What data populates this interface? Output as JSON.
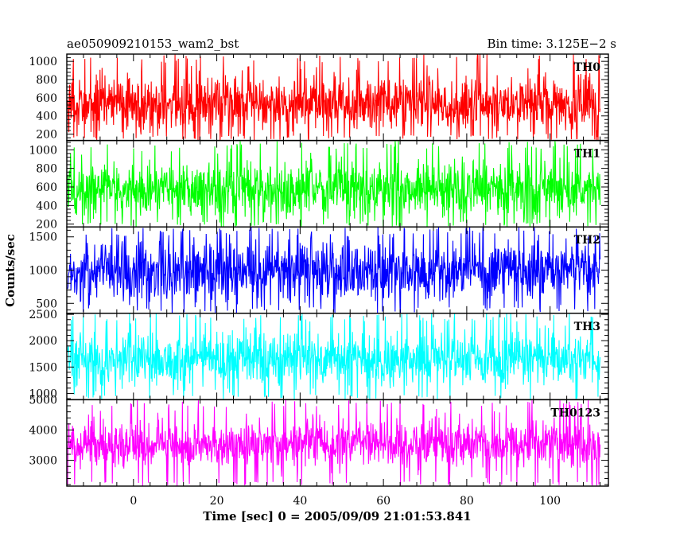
{
  "chart_data": {
    "type": "line",
    "title": "ae050909210153_wam2_bst",
    "subtitle": "Bin time: 3.125E−2 s",
    "xlabel": "Time [sec] 0 = 2005/09/09 21:01:53.841",
    "ylabel": "Counts/sec",
    "xlim": [
      -16,
      114
    ],
    "x_ticks": [
      0,
      20,
      40,
      60,
      80,
      100
    ],
    "x_data_range": [
      -15.8,
      112.0
    ],
    "panels": [
      {
        "name": "TH0",
        "color": "#ff0000",
        "ylim": [
          130,
          1080
        ],
        "y_ticks": [
          200,
          400,
          600,
          800,
          1000
        ],
        "band": {
          "mean": 540,
          "spread": 150,
          "low": 130,
          "high": 1080
        }
      },
      {
        "name": "TH1",
        "color": "#00ff00",
        "ylim": [
          170,
          1100
        ],
        "y_ticks": [
          200,
          400,
          600,
          800,
          1000
        ],
        "band": {
          "mean": 580,
          "spread": 150,
          "low": 170,
          "high": 1100
        }
      },
      {
        "name": "TH2",
        "color": "#0000ff",
        "ylim": [
          350,
          1650
        ],
        "y_ticks": [
          500,
          1000,
          1500
        ],
        "band": {
          "mean": 980,
          "spread": 230,
          "low": 350,
          "high": 1650
        }
      },
      {
        "name": "TH3",
        "color": "#00ffff",
        "ylim": [
          880,
          2520
        ],
        "y_ticks": [
          1000,
          1500,
          2000,
          2500
        ],
        "band": {
          "mean": 1640,
          "spread": 260,
          "low": 880,
          "high": 2520
        }
      },
      {
        "name": "TH0123",
        "color": "#ff00ff",
        "ylim": [
          2150,
          5000
        ],
        "y_ticks": [
          3000,
          4000,
          5000
        ],
        "band": {
          "mean": 3520,
          "spread": 380,
          "low": 2150,
          "high": 5000
        }
      }
    ]
  }
}
